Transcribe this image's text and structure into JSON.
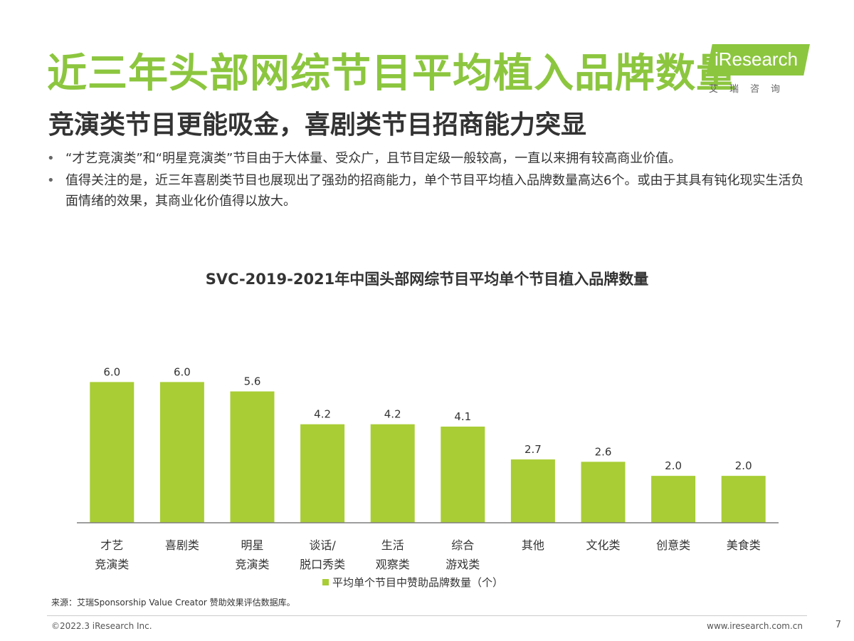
{
  "header": {
    "title": "近三年头部网综节目平均植入品牌数量",
    "subtitle": "竞演类节目更能吸金，喜剧类节目招商能力突显"
  },
  "logo": {
    "brand": "iResearch",
    "cn": "艾瑞咨询"
  },
  "bullets": [
    {
      "marker": "•",
      "text": "“才艺竞演类”和“明星竞演类”节目由于大体量、受众广，且节目定级一般较高，一直以来拥有较高商业价值。"
    },
    {
      "marker": "•",
      "text": "值得关注的是，近三年喜剧类节目也展现出了强劲的招商能力，单个节目平均植入品牌数量高达6个。或由于其具有钝化现实生活负面情绪的效果，其商业化价值得以放大。"
    }
  ],
  "chart_data": {
    "type": "bar",
    "title": "SVC-2019-2021年中国头部网综节目平均单个节目植入品牌数量",
    "categories": [
      [
        "才艺",
        "竞演类"
      ],
      [
        "喜剧类"
      ],
      [
        "明星",
        "竞演类"
      ],
      [
        "谈话/",
        "脱口秀类"
      ],
      [
        "生活",
        "观察类"
      ],
      [
        "综合",
        "游戏类"
      ],
      [
        "其他"
      ],
      [
        "文化类"
      ],
      [
        "创意类"
      ],
      [
        "美食类"
      ]
    ],
    "series": [
      {
        "name": "平均单个节目中赞助品牌数量（个）",
        "values": [
          6.0,
          6.0,
          5.6,
          4.2,
          4.2,
          4.1,
          2.7,
          2.6,
          2.0,
          2.0
        ],
        "labels": [
          "6.0",
          "6.0",
          "5.6",
          "4.2",
          "4.2",
          "4.1",
          "2.7",
          "2.6",
          "2.0",
          "2.0"
        ]
      }
    ],
    "ylim": [
      0,
      7.5
    ],
    "grid": false,
    "legend": "bottom-center",
    "colors": {
      "bar": "#a8cd35",
      "axis": "#7f7f7f",
      "text": "#333333"
    }
  },
  "footer": {
    "source": "来源：艾瑞Sponsorship Value Creator 赞助效果评估数据库。",
    "copyright": "©2022.3 iResearch Inc.",
    "website": "www.iresearch.com.cn",
    "page": "7"
  }
}
